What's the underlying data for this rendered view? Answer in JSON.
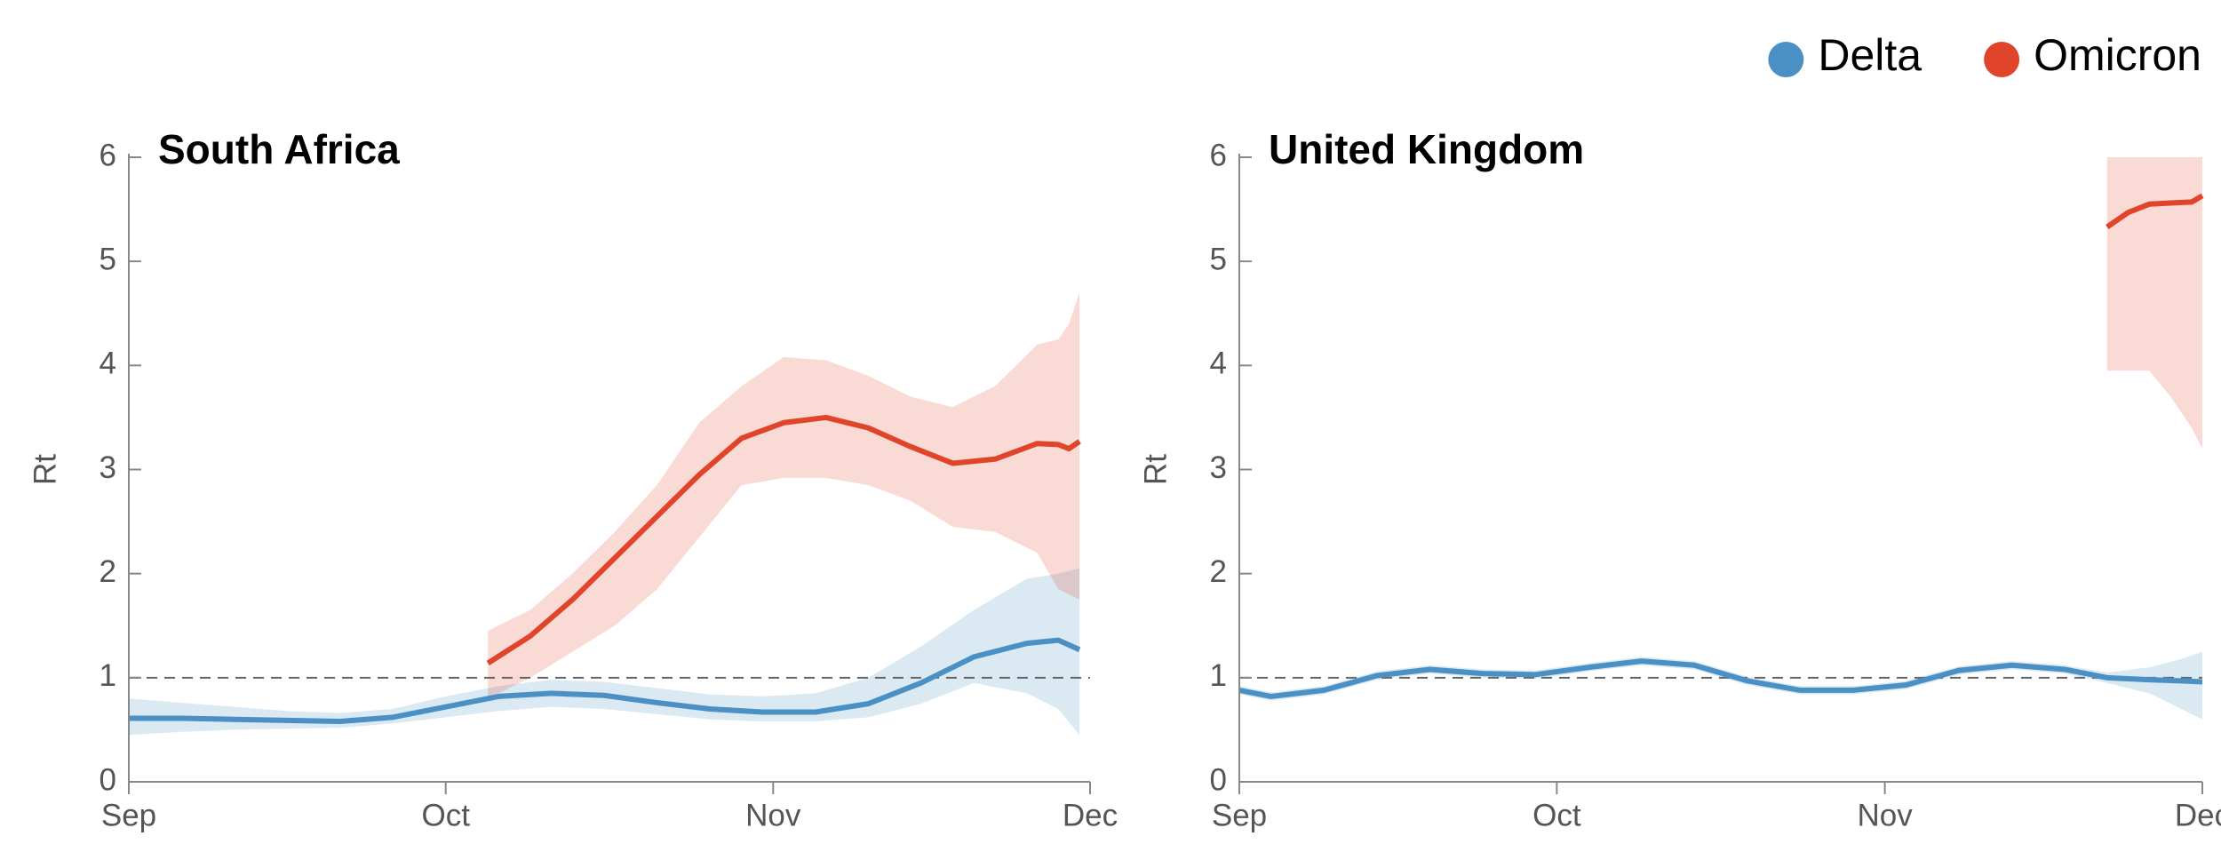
{
  "chart_data": [
    {
      "type": "line",
      "title": "South Africa",
      "y_label": "Rt",
      "xlim": [
        0,
        91
      ],
      "ylim": [
        0,
        6
      ],
      "xticks": [
        {
          "value": 0,
          "label": "Sep"
        },
        {
          "value": 30,
          "label": "Oct"
        },
        {
          "value": 61,
          "label": "Nov"
        },
        {
          "value": 91,
          "label": "Dec"
        }
      ],
      "yticks": [
        0,
        1,
        2,
        3,
        4,
        5,
        6
      ],
      "ref_line": 1,
      "legend": "top right",
      "series": [
        {
          "name": "Delta",
          "color": "#4a90c4",
          "x": [
            0,
            5,
            10,
            15,
            20,
            25,
            30,
            35,
            40,
            45,
            50,
            55,
            60,
            65,
            70,
            75,
            80,
            85,
            88,
            90
          ],
          "values": [
            0.61,
            0.61,
            0.6,
            0.59,
            0.58,
            0.62,
            0.72,
            0.82,
            0.85,
            0.83,
            0.76,
            0.7,
            0.67,
            0.67,
            0.75,
            0.95,
            1.2,
            1.33,
            1.36,
            1.27
          ],
          "lower": [
            0.45,
            0.48,
            0.5,
            0.51,
            0.52,
            0.56,
            0.62,
            0.68,
            0.72,
            0.7,
            0.65,
            0.6,
            0.58,
            0.58,
            0.62,
            0.75,
            0.95,
            0.85,
            0.7,
            0.45
          ],
          "upper": [
            0.8,
            0.76,
            0.72,
            0.68,
            0.66,
            0.7,
            0.82,
            0.92,
            0.98,
            0.96,
            0.9,
            0.84,
            0.82,
            0.85,
            1.0,
            1.3,
            1.65,
            1.95,
            2.0,
            2.05
          ]
        },
        {
          "name": "Omicron",
          "color": "#e0442b",
          "x": [
            34,
            38,
            42,
            46,
            50,
            54,
            58,
            62,
            66,
            70,
            74,
            78,
            82,
            86,
            88,
            89,
            90
          ],
          "values": [
            1.14,
            1.4,
            1.75,
            2.15,
            2.55,
            2.95,
            3.3,
            3.45,
            3.5,
            3.4,
            3.22,
            3.06,
            3.1,
            3.25,
            3.24,
            3.2,
            3.27
          ],
          "lower": [
            0.8,
            1.0,
            1.25,
            1.5,
            1.85,
            2.35,
            2.85,
            2.92,
            2.92,
            2.85,
            2.7,
            2.45,
            2.4,
            2.2,
            1.85,
            1.8,
            1.75
          ],
          "upper": [
            1.45,
            1.65,
            2.0,
            2.4,
            2.85,
            3.45,
            3.8,
            4.08,
            4.05,
            3.9,
            3.7,
            3.6,
            3.8,
            4.2,
            4.25,
            4.4,
            4.7
          ]
        }
      ]
    },
    {
      "type": "line",
      "title": "United Kingdom",
      "y_label": "Rt",
      "xlim": [
        0,
        91
      ],
      "ylim": [
        0,
        6
      ],
      "xticks": [
        {
          "value": 0,
          "label": "Sep"
        },
        {
          "value": 30,
          "label": "Oct"
        },
        {
          "value": 61,
          "label": "Nov"
        },
        {
          "value": 91,
          "label": "Dec"
        }
      ],
      "yticks": [
        0,
        1,
        2,
        3,
        4,
        5,
        6
      ],
      "ref_line": 1,
      "series": [
        {
          "name": "Delta",
          "color": "#4a90c4",
          "x": [
            0,
            3,
            8,
            13,
            18,
            23,
            28,
            33,
            38,
            43,
            48,
            53,
            58,
            63,
            68,
            73,
            78,
            82,
            86,
            89,
            91
          ],
          "values": [
            0.88,
            0.82,
            0.88,
            1.02,
            1.08,
            1.04,
            1.03,
            1.1,
            1.16,
            1.12,
            0.97,
            0.88,
            0.88,
            0.93,
            1.07,
            1.12,
            1.08,
            1.0,
            0.98,
            0.97,
            0.96
          ],
          "lower": [
            0.84,
            0.78,
            0.84,
            0.98,
            1.04,
            1.0,
            0.99,
            1.06,
            1.12,
            1.08,
            0.93,
            0.84,
            0.84,
            0.89,
            1.03,
            1.08,
            1.04,
            0.95,
            0.85,
            0.7,
            0.6
          ],
          "upper": [
            0.92,
            0.86,
            0.92,
            1.06,
            1.12,
            1.08,
            1.07,
            1.14,
            1.2,
            1.16,
            1.01,
            0.92,
            0.92,
            0.97,
            1.11,
            1.16,
            1.12,
            1.05,
            1.1,
            1.18,
            1.25
          ]
        },
        {
          "name": "Omicron",
          "color": "#e0442b",
          "x": [
            82,
            84,
            86,
            88,
            90,
            91
          ],
          "values": [
            5.33,
            5.47,
            5.55,
            5.56,
            5.57,
            5.63
          ],
          "lower": [
            3.95,
            3.95,
            3.95,
            3.7,
            3.4,
            3.2
          ],
          "upper": [
            6,
            6,
            6,
            6,
            6,
            6
          ]
        }
      ]
    }
  ]
}
